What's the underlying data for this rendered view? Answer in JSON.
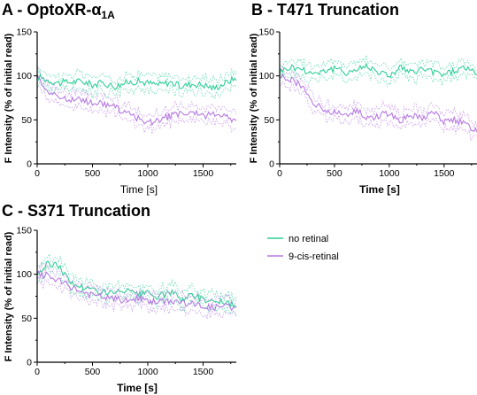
{
  "panels": [
    {
      "title_prefix": "A - OptoXR-",
      "title_symbol": "α",
      "title_sub": "1A",
      "xlabel": "Time [s]",
      "xlabel_bold": false,
      "ylabel": "F Intensity (% of initial read)"
    },
    {
      "title_prefix": "B - T471 Truncation",
      "title_symbol": "",
      "title_sub": "",
      "xlabel": "Time [s]",
      "xlabel_bold": true,
      "ylabel": "F Intensity (% of initial read)"
    },
    {
      "title_prefix": "C - S371 Truncation",
      "title_symbol": "",
      "title_sub": "",
      "xlabel": "Time [s]",
      "xlabel_bold": true,
      "ylabel": "F Intensity (% of initial read)"
    }
  ],
  "legend": {
    "items": [
      {
        "label": "no retinal",
        "color": "#2ecf96"
      },
      {
        "label": "9-cis-retinal",
        "color": "#b77ae4"
      }
    ]
  },
  "chart_data": [
    {
      "type": "line",
      "title": "A - OptoXR-α1A",
      "xlabel": "Time [s]",
      "ylabel": "F Intensity (% of initial read)",
      "xlim": [
        0,
        1800
      ],
      "ylim": [
        0,
        150
      ],
      "xticks": [
        0,
        500,
        1000,
        1500
      ],
      "yticks": [
        0,
        50,
        100,
        150
      ],
      "series": [
        {
          "name": "no retinal",
          "color": "#2ecf96",
          "x": [
            0,
            100,
            200,
            300,
            400,
            500,
            600,
            700,
            800,
            900,
            1000,
            1100,
            1200,
            1300,
            1400,
            1500,
            1600,
            1700,
            1800
          ],
          "y": [
            100,
            95,
            92,
            93,
            94,
            90,
            92,
            88,
            92,
            94,
            92,
            90,
            93,
            88,
            91,
            90,
            86,
            92,
            98
          ]
        },
        {
          "name": "9-cis-retinal",
          "color": "#b77ae4",
          "x": [
            0,
            100,
            200,
            300,
            400,
            500,
            600,
            700,
            800,
            900,
            1000,
            1100,
            1200,
            1300,
            1400,
            1500,
            1600,
            1700,
            1800
          ],
          "y": [
            100,
            82,
            75,
            74,
            72,
            70,
            68,
            65,
            58,
            52,
            47,
            50,
            54,
            57,
            58,
            54,
            58,
            55,
            48
          ]
        }
      ]
    },
    {
      "type": "line",
      "title": "B - T471 Truncation",
      "xlabel": "Time [s]",
      "ylabel": "F Intensity (% of initial read)",
      "xlim": [
        0,
        1800
      ],
      "ylim": [
        0,
        150
      ],
      "xticks": [
        0,
        500,
        1000,
        1500
      ],
      "yticks": [
        0,
        50,
        100,
        150
      ],
      "series": [
        {
          "name": "no retinal",
          "color": "#2ecf96",
          "x": [
            0,
            100,
            200,
            300,
            400,
            500,
            600,
            700,
            800,
            900,
            1000,
            1100,
            1200,
            1300,
            1400,
            1500,
            1600,
            1700,
            1800
          ],
          "y": [
            105,
            110,
            108,
            103,
            106,
            108,
            104,
            107,
            112,
            105,
            100,
            110,
            103,
            108,
            104,
            102,
            106,
            110,
            100
          ]
        },
        {
          "name": "9-cis-retinal",
          "color": "#b77ae4",
          "x": [
            0,
            100,
            200,
            300,
            400,
            500,
            600,
            700,
            800,
            900,
            1000,
            1100,
            1200,
            1300,
            1400,
            1500,
            1600,
            1700,
            1800
          ],
          "y": [
            100,
            96,
            88,
            72,
            60,
            58,
            55,
            62,
            52,
            55,
            58,
            50,
            55,
            52,
            60,
            48,
            50,
            45,
            38
          ]
        }
      ]
    },
    {
      "type": "line",
      "title": "C - S371 Truncation",
      "xlabel": "Time [s]",
      "ylabel": "F Intensity (% of initial read)",
      "xlim": [
        0,
        1800
      ],
      "ylim": [
        0,
        150
      ],
      "xticks": [
        0,
        500,
        1000,
        1500
      ],
      "yticks": [
        0,
        50,
        100,
        150
      ],
      "series": [
        {
          "name": "no retinal",
          "color": "#2ecf96",
          "x": [
            0,
            100,
            200,
            300,
            400,
            500,
            600,
            700,
            800,
            900,
            1000,
            1100,
            1200,
            1300,
            1400,
            1500,
            1600,
            1700,
            1800
          ],
          "y": [
            100,
            112,
            110,
            90,
            86,
            82,
            80,
            78,
            82,
            76,
            78,
            74,
            80,
            72,
            76,
            72,
            70,
            68,
            64
          ]
        },
        {
          "name": "9-cis-retinal",
          "color": "#b77ae4",
          "x": [
            0,
            100,
            200,
            300,
            400,
            500,
            600,
            700,
            800,
            900,
            1000,
            1100,
            1200,
            1300,
            1400,
            1500,
            1600,
            1700,
            1800
          ],
          "y": [
            100,
            98,
            92,
            86,
            80,
            76,
            74,
            72,
            70,
            72,
            70,
            68,
            70,
            68,
            66,
            64,
            62,
            64,
            60
          ]
        }
      ]
    }
  ]
}
